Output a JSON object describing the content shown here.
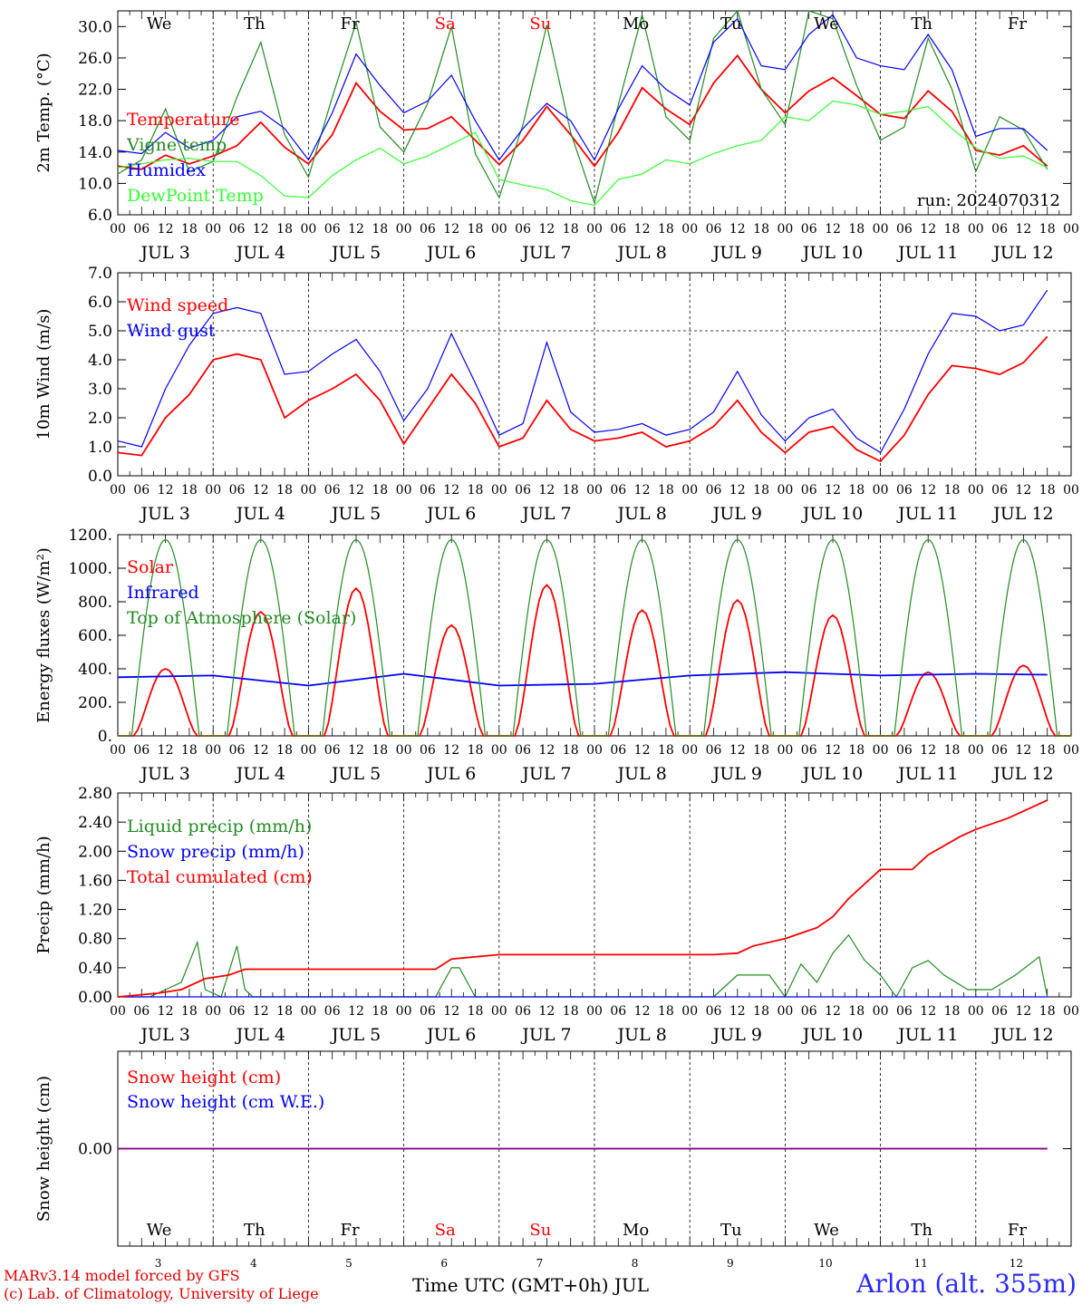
{
  "run_label": "run: 2024070312",
  "days": [
    {
      "weekday": "We",
      "date": "3",
      "weekend": false
    },
    {
      "weekday": "Th",
      "date": "4",
      "weekend": false
    },
    {
      "weekday": "Fr",
      "date": "5",
      "weekend": false
    },
    {
      "weekday": "Sa",
      "date": "6",
      "weekend": true
    },
    {
      "weekday": "Su",
      "date": "7",
      "weekend": true
    },
    {
      "weekday": "Mo",
      "date": "8",
      "weekend": false
    },
    {
      "weekday": "Tu",
      "date": "9",
      "weekend": false
    },
    {
      "weekday": "We",
      "date": "10",
      "weekend": false
    },
    {
      "weekday": "Th",
      "date": "11",
      "weekend": false
    },
    {
      "weekday": "Fr",
      "date": "12",
      "weekend": false
    }
  ],
  "month_label": "JUL",
  "hour_ticks": [
    "00",
    "06",
    "12",
    "18"
  ],
  "footer": {
    "credit_line1": "MARv3.14 model forced by GFS",
    "credit_line2": "(c) Lab. of Climatology, University of Liege",
    "station": "Arlon (alt. 355m)",
    "xaxis_title": "Time UTC (GMT+0h) JUL"
  },
  "colors": {
    "red": "#ff0000",
    "green": "#228b22",
    "blue": "#0000ff",
    "lightgreen": "#33ff33",
    "purple": "#800080",
    "weekend": "#ff0000"
  },
  "chart_data": [
    {
      "type": "line",
      "ylabel": "2m Temp. (°C)",
      "ylim": [
        6.0,
        32.0
      ],
      "yticks": [
        "6.0",
        "10.0",
        "14.0",
        "18.0",
        "22.0",
        "26.0",
        "30.0"
      ],
      "ytick_values": [
        6,
        10,
        14,
        18,
        22,
        26,
        30
      ],
      "x_unit": "hours since 2024-07-03 00 UTC",
      "series": [
        {
          "name": "Temperature",
          "color": "red",
          "x": [
            0,
            6,
            12,
            18,
            24,
            30,
            36,
            42,
            48,
            54,
            60,
            66,
            72,
            78,
            84,
            90,
            96,
            102,
            108,
            114,
            120,
            126,
            132,
            138,
            144,
            150,
            156,
            162,
            168,
            174,
            180,
            186,
            192,
            198,
            204,
            210,
            216,
            222,
            228,
            234
          ],
          "values": [
            12.2,
            11.8,
            13.6,
            12.5,
            13.5,
            14.8,
            17.8,
            14.6,
            12.5,
            16.2,
            22.8,
            19.2,
            16.8,
            17.0,
            18.5,
            15.5,
            12.4,
            15.5,
            19.8,
            16.2,
            12.2,
            16.5,
            22.2,
            19.5,
            17.5,
            22.8,
            26.3,
            22.0,
            19.0,
            21.8,
            23.5,
            21.2,
            18.8,
            18.3,
            21.8,
            19.2,
            14.2,
            13.6,
            14.8,
            12.2
          ]
        },
        {
          "name": "Vigne temp",
          "color": "green",
          "x": [
            0,
            6,
            12,
            18,
            24,
            30,
            36,
            42,
            48,
            54,
            60,
            66,
            72,
            78,
            84,
            90,
            96,
            102,
            108,
            114,
            120,
            126,
            132,
            138,
            144,
            150,
            156,
            162,
            168,
            174,
            180,
            186,
            192,
            198,
            204,
            210,
            216,
            222,
            228,
            234
          ],
          "values": [
            11.2,
            13.0,
            19.5,
            11.5,
            12.8,
            21.0,
            28.0,
            16.2,
            10.8,
            21.0,
            30.5,
            17.2,
            14.0,
            20.2,
            30.0,
            13.8,
            8.2,
            17.5,
            30.2,
            16.5,
            7.5,
            20.0,
            31.5,
            18.5,
            15.5,
            28.5,
            32.0,
            22.0,
            17.5,
            32.0,
            31.0,
            22.5,
            15.5,
            17.2,
            28.5,
            22.0,
            11.5,
            18.5,
            16.8,
            11.8
          ]
        },
        {
          "name": "Humidex",
          "color": "blue",
          "x": [
            0,
            6,
            12,
            18,
            24,
            30,
            36,
            42,
            48,
            54,
            60,
            66,
            72,
            78,
            84,
            90,
            96,
            102,
            108,
            114,
            120,
            126,
            132,
            138,
            144,
            150,
            156,
            162,
            168,
            174,
            180,
            186,
            192,
            198,
            204,
            210,
            216,
            222,
            228,
            234
          ],
          "values": [
            14.2,
            13.8,
            16.5,
            14.5,
            15.5,
            18.5,
            19.2,
            17.0,
            13.0,
            19.0,
            26.5,
            22.5,
            19.0,
            20.5,
            23.8,
            18.0,
            13.0,
            17.0,
            20.2,
            18.0,
            13.0,
            19.5,
            25.0,
            22.0,
            20.0,
            28.0,
            31.0,
            25.0,
            24.5,
            29.0,
            31.5,
            26.0,
            25.0,
            24.5,
            29.0,
            24.5,
            16.0,
            17.0,
            17.0,
            14.2
          ]
        },
        {
          "name": "DewPoint Temp",
          "color": "lightgreen",
          "x": [
            0,
            6,
            12,
            18,
            24,
            30,
            36,
            42,
            48,
            54,
            60,
            66,
            72,
            78,
            84,
            90,
            96,
            102,
            108,
            114,
            120,
            126,
            132,
            138,
            144,
            150,
            156,
            162,
            168,
            174,
            180,
            186,
            192,
            198,
            204,
            210,
            216,
            222,
            228,
            234
          ],
          "values": [
            12.0,
            12.5,
            13.0,
            13.2,
            12.8,
            12.8,
            11.0,
            8.4,
            8.2,
            11.0,
            13.0,
            14.5,
            12.5,
            13.5,
            15.0,
            16.5,
            10.5,
            9.8,
            9.2,
            7.8,
            7.2,
            10.5,
            11.2,
            13.0,
            12.5,
            13.8,
            14.8,
            15.5,
            18.5,
            18.0,
            20.5,
            20.0,
            18.8,
            19.2,
            19.8,
            17.0,
            14.5,
            13.2,
            13.5,
            12.0
          ]
        }
      ]
    },
    {
      "type": "line",
      "ylabel": "10m Wind (m/s)",
      "ylim": [
        0.0,
        7.0
      ],
      "yticks": [
        "0.0",
        "1.0",
        "2.0",
        "3.0",
        "4.0",
        "5.0",
        "6.0",
        "7.0"
      ],
      "ytick_values": [
        0,
        1,
        2,
        3,
        4,
        5,
        6,
        7
      ],
      "reference_line": 5.0,
      "series": [
        {
          "name": "Wind speed",
          "color": "red",
          "x": [
            0,
            6,
            12,
            18,
            24,
            30,
            36,
            42,
            48,
            54,
            60,
            66,
            72,
            78,
            84,
            90,
            96,
            102,
            108,
            114,
            120,
            126,
            132,
            138,
            144,
            150,
            156,
            162,
            168,
            174,
            180,
            186,
            192,
            198,
            204,
            210,
            216,
            222,
            228,
            234
          ],
          "values": [
            0.8,
            0.7,
            2.0,
            2.8,
            4.0,
            4.2,
            4.0,
            2.0,
            2.6,
            3.0,
            3.5,
            2.6,
            1.1,
            2.3,
            3.5,
            2.5,
            1.0,
            1.3,
            2.6,
            1.6,
            1.2,
            1.3,
            1.5,
            1.0,
            1.2,
            1.7,
            2.6,
            1.5,
            0.8,
            1.5,
            1.7,
            0.9,
            0.5,
            1.4,
            2.8,
            3.8,
            3.7,
            3.5,
            3.9,
            4.8
          ]
        },
        {
          "name": "Wind gust",
          "color": "blue",
          "x": [
            0,
            6,
            12,
            18,
            24,
            30,
            36,
            42,
            48,
            54,
            60,
            66,
            72,
            78,
            84,
            90,
            96,
            102,
            108,
            114,
            120,
            126,
            132,
            138,
            144,
            150,
            156,
            162,
            168,
            174,
            180,
            186,
            192,
            198,
            204,
            210,
            216,
            222,
            228,
            234
          ],
          "values": [
            1.2,
            1.0,
            3.0,
            4.5,
            5.6,
            5.8,
            5.6,
            3.5,
            3.6,
            4.2,
            4.7,
            3.6,
            1.9,
            3.0,
            4.9,
            3.2,
            1.4,
            1.8,
            4.6,
            2.2,
            1.5,
            1.6,
            1.8,
            1.4,
            1.6,
            2.2,
            3.6,
            2.1,
            1.2,
            2.0,
            2.3,
            1.3,
            0.8,
            2.3,
            4.2,
            5.6,
            5.5,
            5.0,
            5.2,
            6.4
          ]
        }
      ]
    },
    {
      "type": "line",
      "ylabel": "Energy fluxes (W/m²)",
      "ylim": [
        0,
        1200
      ],
      "yticks": [
        "0.",
        "200.",
        "400.",
        "600.",
        "800.",
        "1000.",
        "1200."
      ],
      "ytick_values": [
        0,
        200,
        400,
        600,
        800,
        1000,
        1200
      ],
      "series": [
        {
          "name": "Solar",
          "color": "red",
          "day_peaks": [
            400,
            740,
            880,
            660,
            900,
            750,
            810,
            720,
            380,
            420
          ]
        },
        {
          "name": "Infrared",
          "color": "blue",
          "x": [
            0,
            24,
            48,
            72,
            96,
            120,
            144,
            168,
            192,
            216,
            234
          ],
          "values": [
            350,
            360,
            300,
            370,
            300,
            310,
            360,
            380,
            360,
            370,
            365
          ]
        },
        {
          "name": "Top of Atmosphere (Solar)",
          "color": "green",
          "day_peak": 1170
        }
      ]
    },
    {
      "type": "line",
      "ylabel": "Precip (mm/h)",
      "ylim": [
        0.0,
        2.8
      ],
      "yticks": [
        "0.00",
        "0.40",
        "0.80",
        "1.20",
        "1.60",
        "2.00",
        "2.40",
        "2.80"
      ],
      "ytick_values": [
        0,
        0.4,
        0.8,
        1.2,
        1.6,
        2.0,
        2.4,
        2.8
      ],
      "series": [
        {
          "name": "Liquid precip (mm/h)",
          "color": "green",
          "x": [
            0,
            8,
            12,
            16,
            20,
            22,
            26,
            30,
            32,
            34,
            40,
            60,
            80,
            84,
            86,
            90,
            100,
            110,
            150,
            156,
            164,
            168,
            172,
            176,
            180,
            184,
            188,
            192,
            196,
            200,
            204,
            208,
            214,
            220,
            226,
            232,
            234
          ],
          "values": [
            0,
            0,
            0.1,
            0.2,
            0.75,
            0.1,
            0,
            0.7,
            0.1,
            0,
            0,
            0,
            0,
            0.4,
            0.4,
            0,
            0,
            0,
            0,
            0.3,
            0.3,
            0,
            0.45,
            0.2,
            0.6,
            0.85,
            0.5,
            0.3,
            0,
            0.4,
            0.5,
            0.3,
            0.1,
            0.1,
            0.3,
            0.55,
            0
          ]
        },
        {
          "name": "Snow precip (mm/h)",
          "color": "blue",
          "x": [
            0,
            234
          ],
          "values": [
            0,
            0
          ]
        },
        {
          "name": "Total cumulated (cm)",
          "color": "red",
          "x": [
            0,
            10,
            16,
            22,
            28,
            32,
            72,
            80,
            84,
            96,
            150,
            156,
            160,
            168,
            176,
            180,
            184,
            192,
            200,
            204,
            212,
            216,
            224,
            234
          ],
          "values": [
            0,
            0.05,
            0.1,
            0.25,
            0.3,
            0.38,
            0.38,
            0.38,
            0.52,
            0.58,
            0.58,
            0.6,
            0.7,
            0.8,
            0.95,
            1.1,
            1.35,
            1.75,
            1.75,
            1.95,
            2.2,
            2.3,
            2.45,
            2.7
          ]
        }
      ]
    },
    {
      "type": "line",
      "ylabel": "Snow height (cm)",
      "ylim": [
        -1,
        1
      ],
      "yticks": [
        "0.00"
      ],
      "ytick_values": [
        0
      ],
      "series": [
        {
          "name": "Snow height (cm)",
          "color": "red",
          "x": [
            0,
            234
          ],
          "values": [
            0,
            0
          ]
        },
        {
          "name": "Snow height (cm W.E.)",
          "color": "blue",
          "x": [
            0,
            234
          ],
          "values": [
            0,
            0
          ]
        }
      ]
    }
  ]
}
